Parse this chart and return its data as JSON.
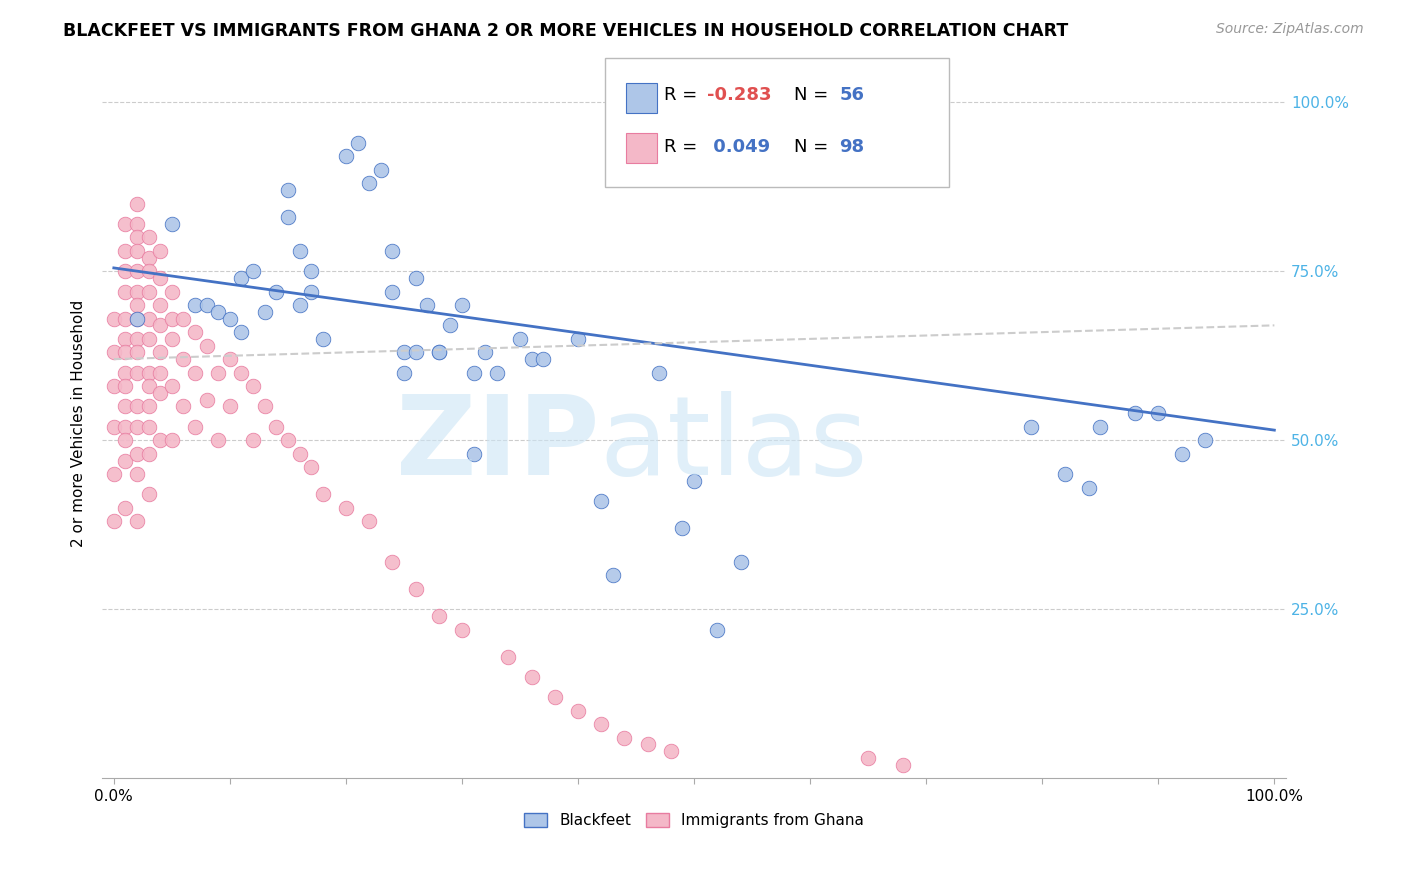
{
  "title": "BLACKFEET VS IMMIGRANTS FROM GHANA 2 OR MORE VEHICLES IN HOUSEHOLD CORRELATION CHART",
  "source": "Source: ZipAtlas.com",
  "ylabel": "2 or more Vehicles in Household",
  "legend_label_blue": "Blackfeet",
  "legend_label_pink": "Immigrants from Ghana",
  "blue_color": "#aec6e8",
  "blue_line_color": "#4472c4",
  "pink_color": "#f4b8c8",
  "pink_line_color": "#e87ca0",
  "grid_color": "#cccccc",
  "right_axis_color": "#4db3e6",
  "blue_scatter_x": [
    0.02,
    0.05,
    0.07,
    0.08,
    0.09,
    0.1,
    0.11,
    0.11,
    0.12,
    0.13,
    0.14,
    0.15,
    0.15,
    0.16,
    0.16,
    0.17,
    0.17,
    0.18,
    0.2,
    0.21,
    0.22,
    0.23,
    0.24,
    0.25,
    0.25,
    0.26,
    0.28,
    0.28,
    0.3,
    0.31,
    0.31,
    0.35,
    0.36,
    0.37,
    0.4,
    0.42,
    0.43,
    0.47,
    0.49,
    0.5,
    0.52,
    0.54,
    0.79,
    0.82,
    0.84,
    0.85,
    0.88,
    0.9,
    0.92,
    0.94,
    0.24,
    0.26,
    0.27,
    0.29,
    0.32,
    0.33
  ],
  "blue_scatter_y": [
    0.68,
    0.82,
    0.7,
    0.7,
    0.69,
    0.68,
    0.66,
    0.74,
    0.75,
    0.69,
    0.72,
    0.83,
    0.87,
    0.78,
    0.7,
    0.72,
    0.75,
    0.65,
    0.92,
    0.94,
    0.88,
    0.9,
    0.72,
    0.63,
    0.6,
    0.63,
    0.63,
    0.63,
    0.7,
    0.6,
    0.48,
    0.65,
    0.62,
    0.62,
    0.65,
    0.41,
    0.3,
    0.6,
    0.37,
    0.44,
    0.22,
    0.32,
    0.52,
    0.45,
    0.43,
    0.52,
    0.54,
    0.54,
    0.48,
    0.5,
    0.78,
    0.74,
    0.7,
    0.67,
    0.63,
    0.6
  ],
  "pink_scatter_x": [
    0.0,
    0.0,
    0.0,
    0.0,
    0.0,
    0.0,
    0.01,
    0.01,
    0.01,
    0.01,
    0.01,
    0.01,
    0.01,
    0.01,
    0.01,
    0.01,
    0.01,
    0.01,
    0.01,
    0.01,
    0.02,
    0.02,
    0.02,
    0.02,
    0.02,
    0.02,
    0.02,
    0.02,
    0.02,
    0.02,
    0.02,
    0.02,
    0.02,
    0.02,
    0.02,
    0.02,
    0.03,
    0.03,
    0.03,
    0.03,
    0.03,
    0.03,
    0.03,
    0.03,
    0.03,
    0.03,
    0.03,
    0.03,
    0.04,
    0.04,
    0.04,
    0.04,
    0.04,
    0.04,
    0.04,
    0.04,
    0.05,
    0.05,
    0.05,
    0.05,
    0.05,
    0.06,
    0.06,
    0.06,
    0.07,
    0.07,
    0.07,
    0.08,
    0.08,
    0.09,
    0.09,
    0.1,
    0.1,
    0.11,
    0.12,
    0.12,
    0.13,
    0.14,
    0.15,
    0.16,
    0.17,
    0.18,
    0.2,
    0.22,
    0.24,
    0.26,
    0.28,
    0.3,
    0.34,
    0.36,
    0.38,
    0.4,
    0.42,
    0.44,
    0.46,
    0.48,
    0.65,
    0.68
  ],
  "pink_scatter_y": [
    0.68,
    0.63,
    0.58,
    0.52,
    0.45,
    0.38,
    0.82,
    0.78,
    0.75,
    0.72,
    0.68,
    0.65,
    0.63,
    0.6,
    0.58,
    0.55,
    0.52,
    0.5,
    0.47,
    0.4,
    0.85,
    0.82,
    0.8,
    0.78,
    0.75,
    0.72,
    0.7,
    0.68,
    0.65,
    0.63,
    0.6,
    0.55,
    0.52,
    0.48,
    0.45,
    0.38,
    0.8,
    0.77,
    0.75,
    0.72,
    0.68,
    0.65,
    0.6,
    0.58,
    0.55,
    0.52,
    0.48,
    0.42,
    0.78,
    0.74,
    0.7,
    0.67,
    0.63,
    0.6,
    0.57,
    0.5,
    0.72,
    0.68,
    0.65,
    0.58,
    0.5,
    0.68,
    0.62,
    0.55,
    0.66,
    0.6,
    0.52,
    0.64,
    0.56,
    0.6,
    0.5,
    0.62,
    0.55,
    0.6,
    0.58,
    0.5,
    0.55,
    0.52,
    0.5,
    0.48,
    0.46,
    0.42,
    0.4,
    0.38,
    0.32,
    0.28,
    0.24,
    0.22,
    0.18,
    0.15,
    0.12,
    0.1,
    0.08,
    0.06,
    0.05,
    0.04,
    0.03,
    0.02
  ],
  "blue_line_y_start": 0.755,
  "blue_line_y_end": 0.515,
  "pink_line_y_start": 0.62,
  "pink_line_y_end": 0.67,
  "ylim": [
    0.0,
    1.05
  ],
  "xlim": [
    -0.01,
    1.01
  ]
}
